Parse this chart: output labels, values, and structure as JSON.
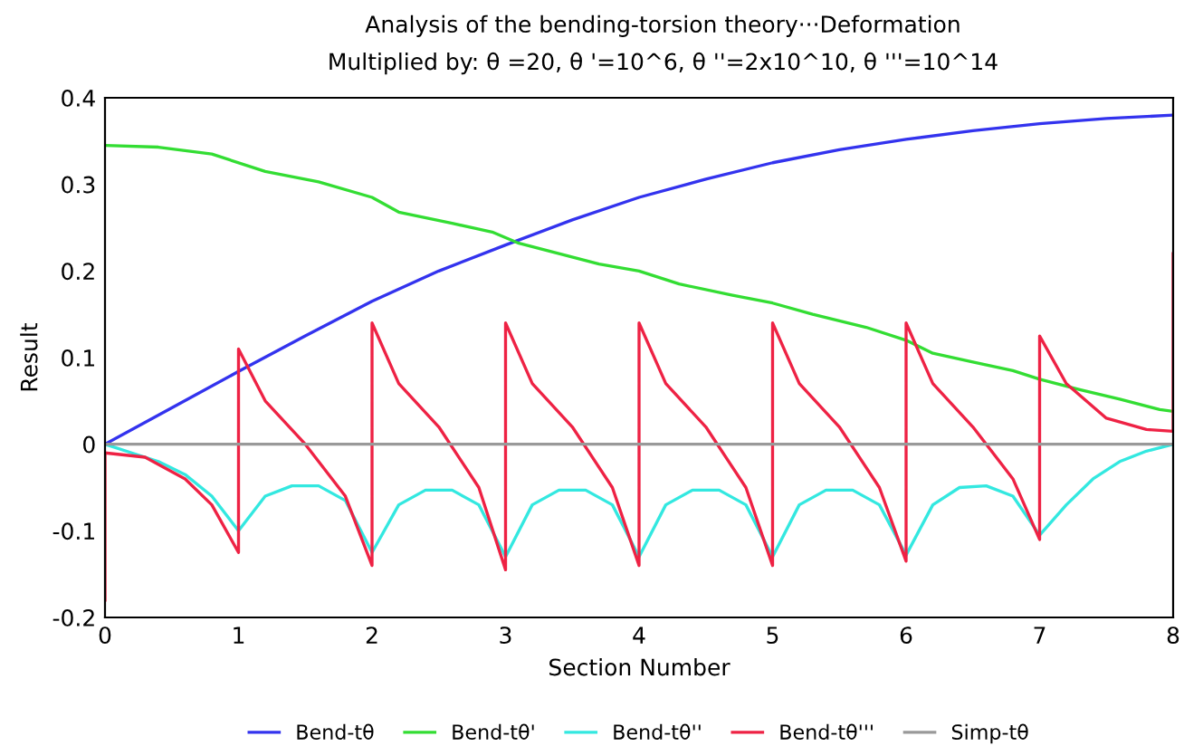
{
  "chart_data": {
    "type": "line",
    "title": "Analysis of the bending-torsion theory···Deformation",
    "subtitle": "Multiplied by: θ =20, θ '=10^6, θ ''=2x10^10, θ '''=10^14",
    "xlabel": "Section Number",
    "ylabel": "Result",
    "xlim": [
      0,
      8
    ],
    "xticks": [
      0,
      1,
      2,
      3,
      4,
      5,
      6,
      7,
      8
    ],
    "ylim": [
      -0.2,
      0.4
    ],
    "yticks": [
      -0.2,
      -0.1,
      0,
      0.1,
      0.2,
      0.3,
      0.4
    ],
    "grid": false,
    "legend": "bottom",
    "marker": "none",
    "line_style": "solid",
    "series": [
      {
        "name": "Bend-tθ",
        "color": "#3333ee",
        "x": [
          0,
          0.5,
          1,
          1.5,
          2,
          2.5,
          3,
          3.5,
          4,
          4.5,
          5,
          5.5,
          6,
          6.5,
          7,
          7.5,
          8
        ],
        "values": [
          0,
          0.042,
          0.084,
          0.125,
          0.165,
          0.2,
          0.23,
          0.259,
          0.285,
          0.306,
          0.325,
          0.34,
          0.352,
          0.362,
          0.37,
          0.376,
          0.38
        ]
      },
      {
        "name": "Bend-tθ'",
        "color": "#33dd33",
        "x": [
          0,
          0.4,
          0.8,
          1.2,
          1.6,
          2,
          2.2,
          2.6,
          2.9,
          3.1,
          3.4,
          3.7,
          4,
          4.3,
          4.7,
          5,
          5.3,
          5.7,
          6,
          6.2,
          6.5,
          6.8,
          7,
          7.3,
          7.6,
          7.9,
          8
        ],
        "values": [
          0.345,
          0.343,
          0.335,
          0.315,
          0.303,
          0.285,
          0.268,
          0.255,
          0.245,
          0.232,
          0.22,
          0.208,
          0.2,
          0.185,
          0.172,
          0.163,
          0.15,
          0.135,
          0.12,
          0.105,
          0.095,
          0.085,
          0.075,
          0.063,
          0.052,
          0.04,
          0.038
        ]
      },
      {
        "name": "Bend-tθ''",
        "color": "#33e8e0",
        "x": [
          0,
          0.2,
          0.4,
          0.6,
          0.8,
          1,
          1.2,
          1.4,
          1.6,
          1.8,
          2,
          2.2,
          2.4,
          2.6,
          2.8,
          3,
          3.2,
          3.4,
          3.6,
          3.8,
          4,
          4.2,
          4.4,
          4.6,
          4.8,
          5,
          5.2,
          5.4,
          5.6,
          5.8,
          6,
          6.2,
          6.4,
          6.6,
          6.8,
          7,
          7.2,
          7.4,
          7.6,
          7.8,
          8
        ],
        "values": [
          0,
          -0.01,
          -0.02,
          -0.035,
          -0.06,
          -0.1,
          -0.06,
          -0.048,
          -0.048,
          -0.065,
          -0.125,
          -0.07,
          -0.053,
          -0.053,
          -0.07,
          -0.13,
          -0.07,
          -0.053,
          -0.053,
          -0.07,
          -0.13,
          -0.07,
          -0.053,
          -0.053,
          -0.07,
          -0.13,
          -0.07,
          -0.053,
          -0.053,
          -0.07,
          -0.128,
          -0.07,
          -0.05,
          -0.048,
          -0.06,
          -0.105,
          -0.07,
          -0.04,
          -0.02,
          -0.008,
          0
        ]
      },
      {
        "name": "Bend-tθ'''",
        "color": "#ee2244",
        "x": [
          0,
          0,
          0.3,
          0.6,
          0.8,
          1,
          1,
          1.2,
          1.5,
          1.8,
          2,
          2,
          2.2,
          2.5,
          2.8,
          3,
          3,
          3.2,
          3.5,
          3.8,
          4,
          4,
          4.2,
          4.5,
          4.8,
          5,
          5,
          5.2,
          5.5,
          5.8,
          6,
          6,
          6.2,
          6.5,
          6.8,
          7,
          7,
          7.2,
          7.5,
          7.8,
          8,
          8
        ],
        "values": [
          -0.18,
          -0.01,
          -0.015,
          -0.04,
          -0.07,
          -0.125,
          0.11,
          0.05,
          0.0,
          -0.06,
          -0.14,
          0.14,
          0.07,
          0.02,
          -0.05,
          -0.145,
          0.14,
          0.07,
          0.02,
          -0.05,
          -0.14,
          0.14,
          0.07,
          0.02,
          -0.05,
          -0.14,
          0.14,
          0.07,
          0.02,
          -0.05,
          -0.135,
          0.14,
          0.07,
          0.02,
          -0.04,
          -0.11,
          0.125,
          0.07,
          0.03,
          0.017,
          0.015,
          0.22
        ]
      },
      {
        "name": "Simp-tθ",
        "color": "#999999",
        "x": [
          0,
          8
        ],
        "values": [
          0,
          0
        ]
      }
    ]
  }
}
